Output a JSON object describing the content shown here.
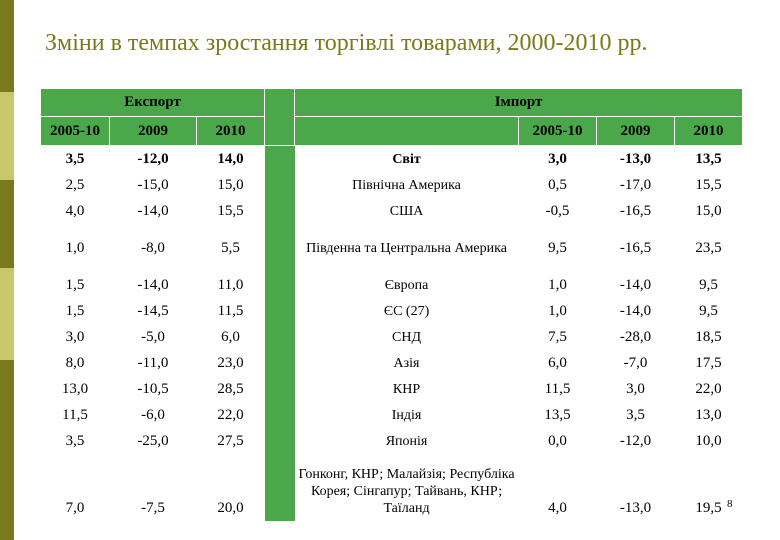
{
  "title": "Зміни в темпах зростання торгівлі товарами, 2000-2010 рр.",
  "page_number": "8",
  "colors": {
    "header_green": "#4aa84a",
    "title_olive": "#7a7a1a",
    "sidebar_dark": "#7a7a1a",
    "sidebar_light": "#c8c86a"
  },
  "header": {
    "export": "Експорт",
    "import": "Імпорт",
    "years": [
      "2005-10",
      "2009",
      "2010"
    ]
  },
  "rows": [
    {
      "exp": [
        "3,5",
        "-12,0",
        "14,0"
      ],
      "region": "Світ",
      "imp": [
        "3,0",
        "-13,0",
        "13,5"
      ]
    },
    {
      "exp": [
        "2,5",
        "-15,0",
        "15,0"
      ],
      "region": "Північна Америка",
      "imp": [
        "0,5",
        "-17,0",
        "15,5"
      ]
    },
    {
      "exp": [
        "4,0",
        "-14,0",
        "15,5"
      ],
      "region": "США",
      "imp": [
        "-0,5",
        "-16,5",
        "15,0"
      ]
    },
    {
      "exp": [
        "1,0",
        "-8,0",
        "5,5"
      ],
      "region": "Південна та Центральна Америка",
      "imp": [
        "9,5",
        "-16,5",
        "23,5"
      ]
    },
    {
      "exp": [
        "1,5",
        "-14,0",
        "11,0"
      ],
      "region": "Європа",
      "imp": [
        "1,0",
        "-14,0",
        "9,5"
      ]
    },
    {
      "exp": [
        "1,5",
        "-14,5",
        "11,5"
      ],
      "region": "ЄС (27)",
      "imp": [
        "1,0",
        "-14,0",
        "9,5"
      ]
    },
    {
      "exp": [
        "3,0",
        "-5,0",
        "6,0"
      ],
      "region": "СНД",
      "imp": [
        "7,5",
        "-28,0",
        "18,5"
      ]
    },
    {
      "exp": [
        "8,0",
        "-11,0",
        "23,0"
      ],
      "region": "Азія",
      "imp": [
        "6,0",
        "-7,0",
        "17,5"
      ]
    },
    {
      "exp": [
        "13,0",
        "-10,5",
        "28,5"
      ],
      "region": "КНР",
      "imp": [
        "11,5",
        "3,0",
        "22,0"
      ]
    },
    {
      "exp": [
        "11,5",
        "-6,0",
        "22,0"
      ],
      "region": "Індія",
      "imp": [
        "13,5",
        "3,5",
        "13,0"
      ]
    },
    {
      "exp": [
        "3,5",
        "-25,0",
        "27,5"
      ],
      "region": "Японія",
      "imp": [
        "0,0",
        "-12,0",
        "10,0"
      ]
    },
    {
      "exp": [
        "7,0",
        "-7,5",
        "20,0"
      ],
      "region": "Гонконг, КНР; Малайзія; Республіка Корея; Сінгапур; Тайвань, КНР; Таїланд",
      "imp": [
        "4,0",
        "-13,0",
        "19,5"
      ]
    }
  ]
}
